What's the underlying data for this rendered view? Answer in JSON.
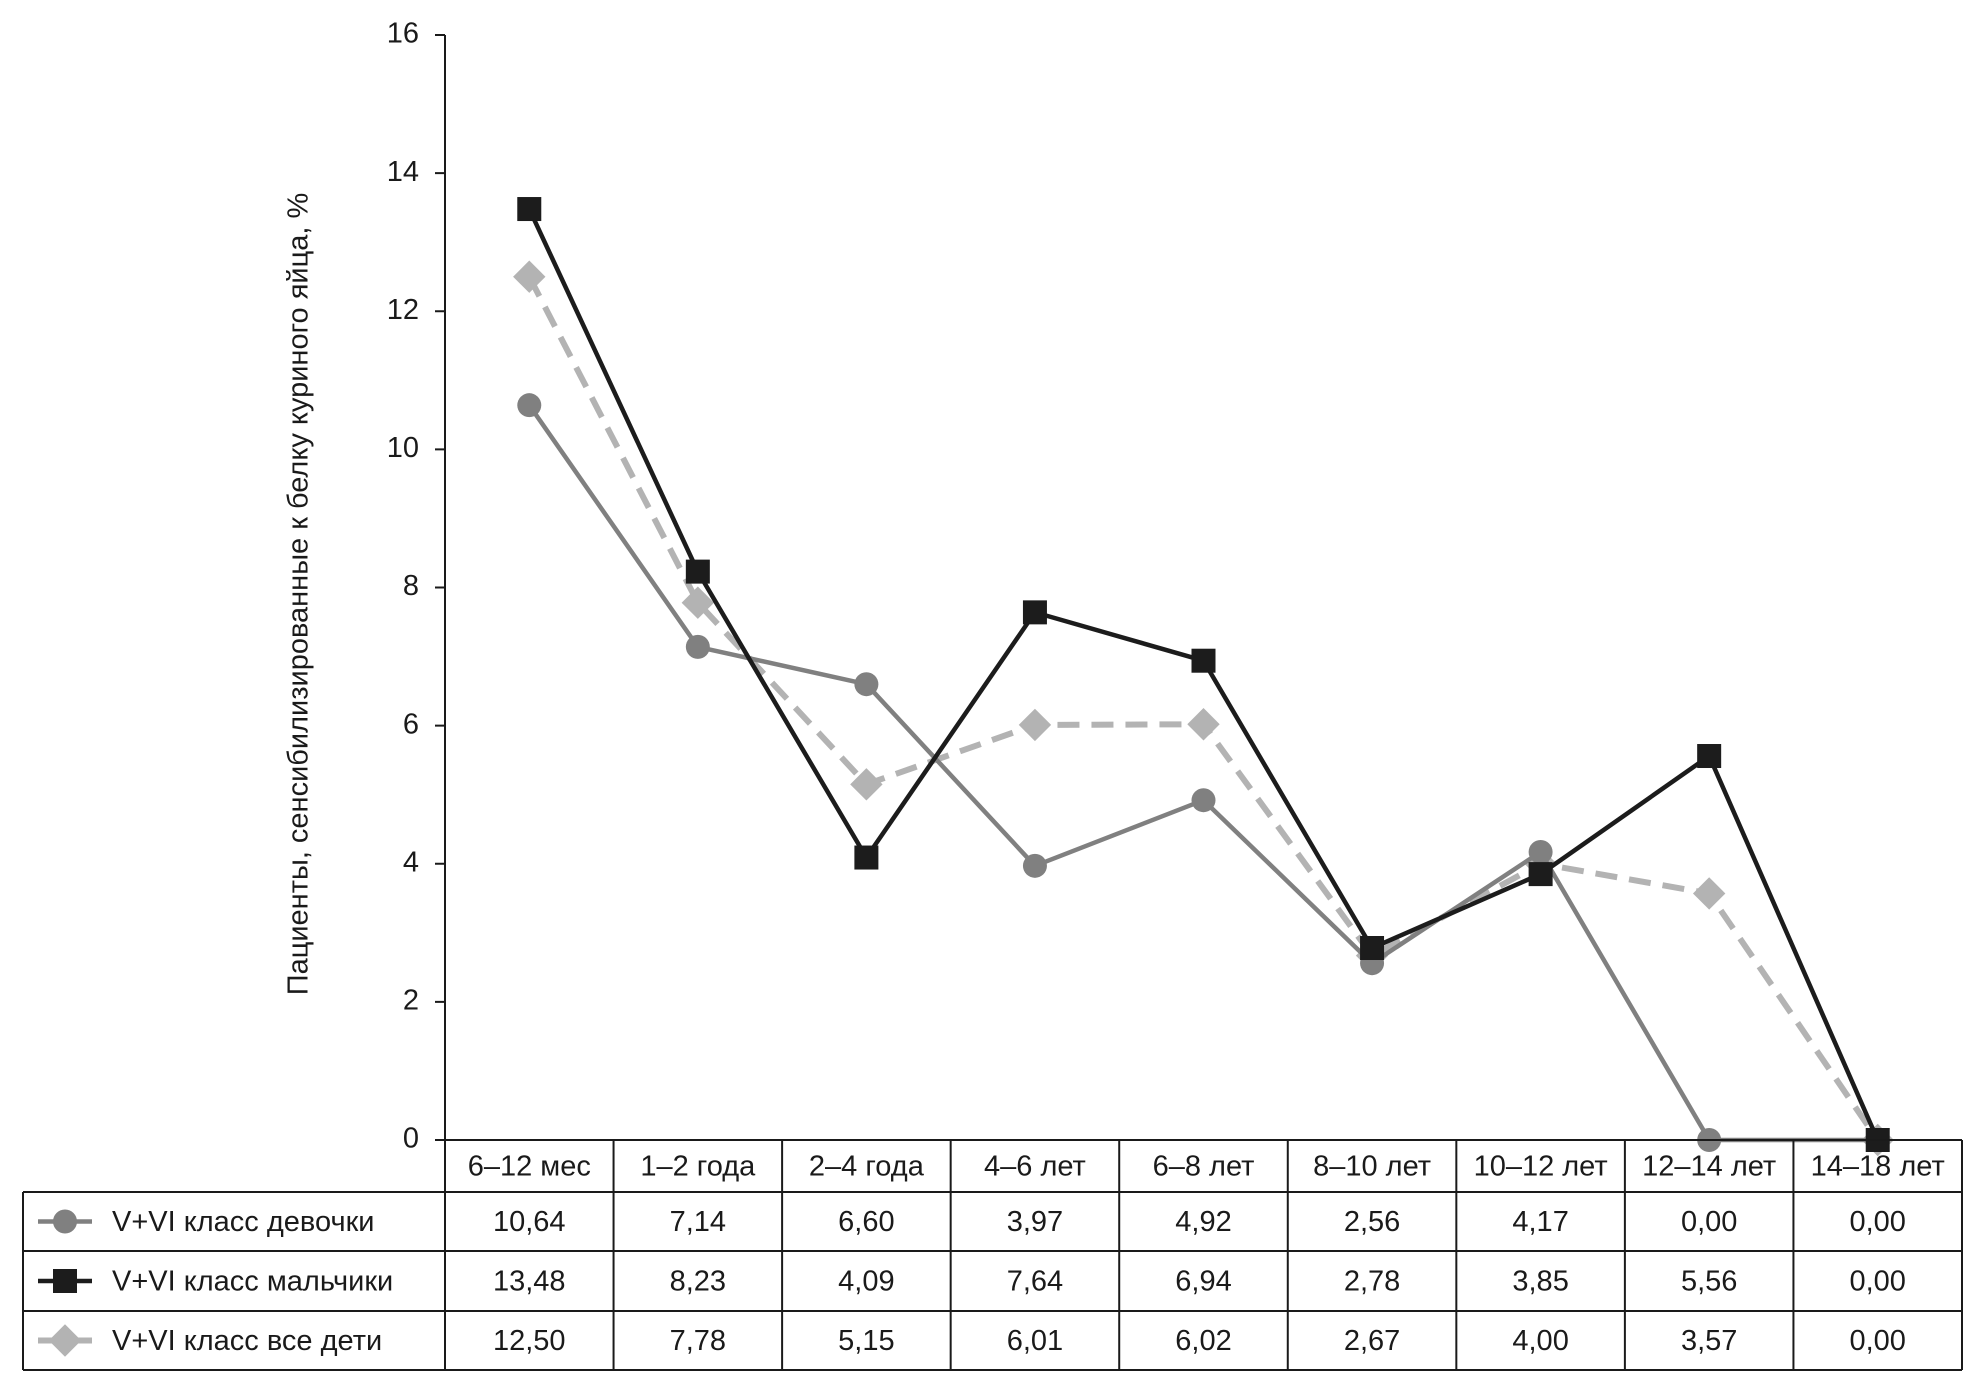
{
  "chart_data": {
    "type": "line",
    "y_axis_label": "Пациенты, сенсибилизированные к белку куриного яйца, %",
    "categories": [
      "6–12 мес",
      "1–2 года",
      "2–4 года",
      "4–6 лет",
      "6–8 лет",
      "8–10 лет",
      "10–12 лет",
      "12–14 лет",
      "14–18 лет"
    ],
    "series": [
      {
        "name": "V+VI класс девочки",
        "color": "#808080",
        "marker": "circle",
        "dashed": false,
        "values": [
          10.64,
          7.14,
          6.6,
          3.97,
          4.92,
          2.56,
          4.17,
          0.0,
          0.0
        ],
        "value_labels": [
          "10,64",
          "7,14",
          "6,60",
          "3,97",
          "4,92",
          "2,56",
          "4,17",
          "0,00",
          "0,00"
        ]
      },
      {
        "name": "V+VI класс мальчики",
        "color": "#1c1c1c",
        "marker": "square",
        "dashed": false,
        "values": [
          13.48,
          8.23,
          4.09,
          7.64,
          6.94,
          2.78,
          3.85,
          5.56,
          0.0
        ],
        "value_labels": [
          "13,48",
          "8,23",
          "4,09",
          "7,64",
          "6,94",
          "2,78",
          "3,85",
          "5,56",
          "0,00"
        ]
      },
      {
        "name": "V+VI класс все дети",
        "color": "#b3b3b3",
        "marker": "diamond",
        "dashed": true,
        "values": [
          12.5,
          7.78,
          5.15,
          6.01,
          6.02,
          2.67,
          4.0,
          3.57,
          0.0
        ],
        "value_labels": [
          "12,50",
          "7,78",
          "5,15",
          "6,01",
          "6,02",
          "2,67",
          "4,00",
          "3,57",
          "0,00"
        ]
      }
    ],
    "ylim": [
      0,
      16
    ],
    "yticks": [
      0,
      2,
      4,
      6,
      8,
      10,
      12,
      14,
      16
    ],
    "grid": false
  }
}
